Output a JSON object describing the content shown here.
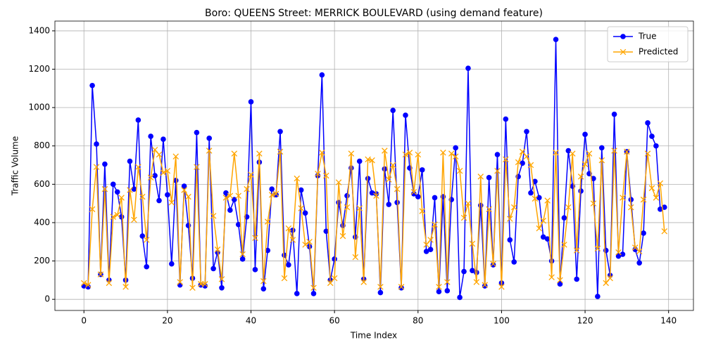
{
  "chart_data": {
    "type": "line",
    "title": "Boro: QUEENS Street: MERRICK BOULEVARD (using demand feature)",
    "x_label": "Time Index",
    "y_label": "Traffic Volume",
    "x": [
      0,
      1,
      2,
      3,
      4,
      5,
      6,
      7,
      8,
      9,
      10,
      11,
      12,
      13,
      14,
      15,
      16,
      17,
      18,
      19,
      20,
      21,
      22,
      23,
      24,
      25,
      26,
      27,
      28,
      29,
      30,
      31,
      32,
      33,
      34,
      35,
      36,
      37,
      38,
      39,
      40,
      41,
      42,
      43,
      44,
      45,
      46,
      47,
      48,
      49,
      50,
      51,
      52,
      53,
      54,
      55,
      56,
      57,
      58,
      59,
      60,
      61,
      62,
      63,
      64,
      65,
      66,
      67,
      68,
      69,
      70,
      71,
      72,
      73,
      74,
      75,
      76,
      77,
      78,
      79,
      80,
      81,
      82,
      83,
      84,
      85,
      86,
      87,
      88,
      89,
      90,
      91,
      92,
      93,
      94,
      95,
      96,
      97,
      98,
      99,
      100,
      101,
      102,
      103,
      104,
      105,
      106,
      107,
      108,
      109,
      110,
      111,
      112,
      113,
      114,
      115,
      116,
      117,
      118,
      119,
      120,
      121,
      122,
      123,
      124,
      125,
      126,
      127,
      128,
      129,
      130,
      131,
      132,
      133,
      134,
      135,
      136,
      137,
      138,
      139
    ],
    "series": [
      {
        "name": "True",
        "color": "#0000ff",
        "marker": "circle",
        "values": [
          70,
          65,
          1115,
          810,
          130,
          705,
          100,
          600,
          560,
          430,
          100,
          720,
          575,
          935,
          330,
          170,
          850,
          645,
          515,
          835,
          545,
          185,
          620,
          75,
          590,
          385,
          110,
          870,
          75,
          70,
          840,
          160,
          245,
          60,
          555,
          465,
          520,
          390,
          210,
          430,
          1030,
          155,
          715,
          55,
          255,
          575,
          545,
          875,
          230,
          180,
          360,
          30,
          570,
          450,
          275,
          30,
          645,
          1170,
          355,
          100,
          210,
          505,
          385,
          540,
          685,
          325,
          720,
          105,
          630,
          555,
          550,
          35,
          680,
          495,
          985,
          505,
          60,
          960,
          685,
          550,
          535,
          675,
          250,
          260,
          530,
          40,
          535,
          45,
          520,
          790,
          10,
          145,
          1205,
          150,
          140,
          490,
          70,
          635,
          180,
          755,
          85,
          940,
          310,
          195,
          640,
          710,
          875,
          555,
          615,
          530,
          325,
          315,
          200,
          1355,
          80,
          425,
          775,
          590,
          105,
          565,
          860,
          655,
          630,
          15,
          790,
          255,
          125,
          965,
          225,
          235,
          770,
          520,
          260,
          190,
          345,
          920,
          850,
          800,
          470,
          480
        ]
      },
      {
        "name": "Predicted",
        "color": "#ffa500",
        "marker": "x",
        "values": [
          85,
          75,
          470,
          690,
          130,
          575,
          85,
          430,
          440,
          530,
          65,
          570,
          415,
          690,
          535,
          310,
          635,
          780,
          755,
          660,
          670,
          505,
          745,
          90,
          570,
          535,
          60,
          690,
          80,
          80,
          775,
          435,
          260,
          105,
          530,
          540,
          760,
          540,
          235,
          575,
          650,
          320,
          760,
          95,
          405,
          545,
          550,
          770,
          110,
          370,
          310,
          630,
          475,
          285,
          300,
          60,
          655,
          765,
          645,
          85,
          110,
          610,
          330,
          480,
          760,
          220,
          475,
          90,
          730,
          725,
          540,
          65,
          775,
          625,
          700,
          575,
          65,
          755,
          765,
          560,
          755,
          460,
          285,
          310,
          390,
          65,
          765,
          90,
          760,
          745,
          670,
          425,
          500,
          290,
          90,
          640,
          75,
          470,
          185,
          670,
          65,
          730,
          420,
          480,
          715,
          770,
          745,
          700,
          525,
          370,
          410,
          515,
          115,
          765,
          100,
          285,
          480,
          760,
          255,
          640,
          705,
          760,
          500,
          265,
          725,
          85,
          110,
          775,
          245,
          530,
          770,
          480,
          270,
          250,
          520,
          760,
          580,
          530,
          605,
          355
        ]
      }
    ],
    "xlim": [
      -6.95,
      145.95
    ],
    "ylim": [
      -58,
      1451
    ],
    "xticks": [
      0,
      20,
      40,
      60,
      80,
      100,
      120,
      140
    ],
    "yticks": [
      0,
      200,
      400,
      600,
      800,
      1000,
      1200,
      1400
    ],
    "grid": true,
    "legend": "upper right"
  }
}
